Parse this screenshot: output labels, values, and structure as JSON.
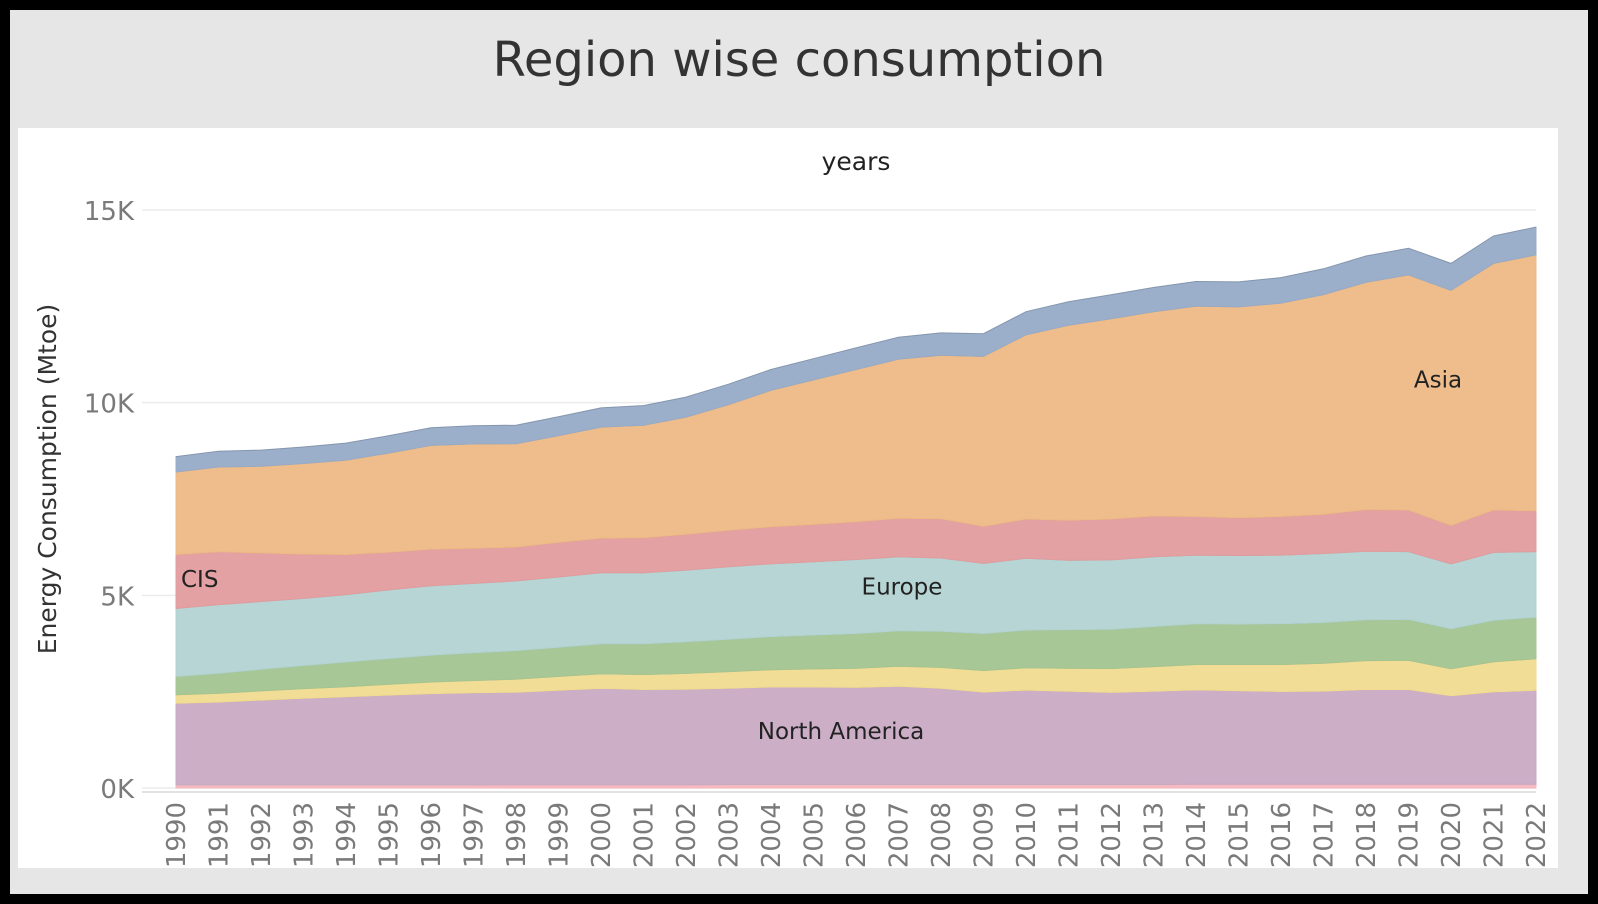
{
  "title": "Region wise consumption",
  "chart_data": {
    "type": "area",
    "stacked": true,
    "title": "Region wise consumption",
    "xlabel": "years",
    "ylabel": "Energy Consumption (Mtoe)",
    "ylim": [
      0,
      15000
    ],
    "y_ticks": [
      0,
      5000,
      10000,
      15000
    ],
    "y_tick_labels": [
      "0K",
      "5K",
      "10K",
      "15K"
    ],
    "grid": "horizontal",
    "x": [
      1990,
      1991,
      1992,
      1993,
      1994,
      1995,
      1996,
      1997,
      1998,
      1999,
      2000,
      2001,
      2002,
      2003,
      2004,
      2005,
      2006,
      2007,
      2008,
      2009,
      2010,
      2011,
      2012,
      2013,
      2014,
      2015,
      2016,
      2017,
      2018,
      2019,
      2020,
      2021,
      2022
    ],
    "series": [
      {
        "key": "s1",
        "label": "",
        "color": "#f4b6bd",
        "values": [
          80,
          80,
          80,
          80,
          80,
          80,
          80,
          80,
          85,
          85,
          85,
          85,
          85,
          90,
          90,
          90,
          90,
          90,
          90,
          90,
          90,
          90,
          90,
          90,
          95,
          95,
          95,
          95,
          95,
          95,
          95,
          95,
          95
        ]
      },
      {
        "key": "s2",
        "label": "North America",
        "color": "#c9aac4",
        "values": [
          2120,
          2150,
          2200,
          2250,
          2290,
          2330,
          2370,
          2390,
          2400,
          2450,
          2500,
          2470,
          2480,
          2500,
          2530,
          2530,
          2520,
          2550,
          2500,
          2400,
          2450,
          2420,
          2390,
          2420,
          2450,
          2430,
          2410,
          2420,
          2460,
          2460,
          2300,
          2400,
          2440
        ]
      },
      {
        "key": "s3",
        "label": "",
        "color": "#f0db90",
        "values": [
          220,
          230,
          240,
          250,
          260,
          280,
          300,
          320,
          340,
          360,
          380,
          390,
          410,
          430,
          450,
          470,
          500,
          520,
          540,
          560,
          580,
          600,
          620,
          640,
          660,
          680,
          700,
          720,
          750,
          760,
          700,
          780,
          820
        ]
      },
      {
        "key": "s4",
        "label": "",
        "color": "#a3c491",
        "values": [
          480,
          520,
          560,
          600,
          640,
          670,
          700,
          720,
          740,
          760,
          780,
          800,
          820,
          840,
          860,
          880,
          900,
          920,
          940,
          960,
          980,
          1000,
          1020,
          1040,
          1060,
          1050,
          1060,
          1060,
          1060,
          1060,
          1040,
          1080,
          1080
        ]
      },
      {
        "key": "s5",
        "label": "Europe",
        "color": "#b2d3d2",
        "values": [
          1760,
          1780,
          1760,
          1740,
          1750,
          1780,
          1800,
          1800,
          1810,
          1820,
          1840,
          1840,
          1860,
          1880,
          1890,
          1900,
          1920,
          1920,
          1900,
          1820,
          1860,
          1800,
          1800,
          1810,
          1780,
          1780,
          1780,
          1790,
          1780,
          1760,
          1680,
          1760,
          1700
        ]
      },
      {
        "key": "s6",
        "label": "CIS",
        "color": "#e29c9e",
        "values": [
          1400,
          1370,
          1260,
          1150,
          1040,
          980,
          950,
          910,
          880,
          900,
          900,
          910,
          930,
          950,
          960,
          970,
          980,
          1000,
          1020,
          960,
          1020,
          1040,
          1060,
          1060,
          1000,
          980,
          1000,
          1020,
          1080,
          1080,
          1000,
          1100,
          1060
        ]
      },
      {
        "key": "s7",
        "label": "Asia",
        "color": "#edb985",
        "values": [
          2140,
          2200,
          2250,
          2350,
          2450,
          2570,
          2690,
          2710,
          2680,
          2770,
          2880,
          2920,
          3040,
          3260,
          3540,
          3750,
          3950,
          4130,
          4240,
          4410,
          4780,
          5060,
          5200,
          5300,
          5460,
          5470,
          5540,
          5700,
          5900,
          6100,
          6100,
          6400,
          6640
        ]
      },
      {
        "key": "s8",
        "label": "",
        "color": "#97abc7",
        "values": [
          400,
          410,
          420,
          430,
          440,
          450,
          460,
          470,
          480,
          490,
          500,
          510,
          520,
          530,
          540,
          550,
          560,
          570,
          580,
          590,
          600,
          610,
          620,
          630,
          640,
          650,
          660,
          670,
          680,
          690,
          700,
          710,
          720
        ]
      }
    ]
  }
}
